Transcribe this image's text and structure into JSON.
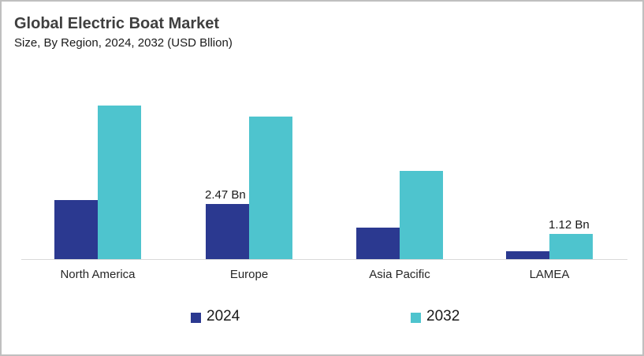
{
  "header": {
    "title": "Global Electric Boat Market",
    "subtitle": "Size, By Region, 2024, 2032 (USD Bllion)"
  },
  "legend": {
    "items": [
      {
        "label": "2024",
        "color": "#2b3990"
      },
      {
        "label": "2032",
        "color": "#4ec4ce"
      }
    ]
  },
  "colors": {
    "series_2024": "#2b3990",
    "series_2032": "#4ec4ce",
    "axis_line": "#d9d9d9",
    "frame_border": "#bfbfbf",
    "title_text": "#3f3f3f",
    "body_text": "#1a1a1a"
  },
  "chart_data": {
    "type": "bar",
    "title": "Global Electric Boat Market",
    "subtitle": "Size, By Region, 2024, 2032 (USD Bllion)",
    "unit": "USD Billion",
    "categories": [
      "North America",
      "Europe",
      "Asia Pacific",
      "LAMEA"
    ],
    "series": [
      {
        "name": "2024",
        "color": "#2b3990",
        "values": [
          2.65,
          2.47,
          1.4,
          0.35
        ]
      },
      {
        "name": "2032",
        "color": "#4ec4ce",
        "values": [
          6.88,
          6.4,
          3.95,
          1.12
        ]
      }
    ],
    "data_labels": [
      {
        "series": "2024",
        "category": "Europe",
        "text": "2.47 Bn"
      },
      {
        "series": "2032",
        "category": "LAMEA",
        "text": "1.12 Bn"
      }
    ],
    "ylim": [
      0,
      7
    ],
    "grid": false,
    "legend_position": "bottom",
    "xlabel": "",
    "ylabel": ""
  }
}
